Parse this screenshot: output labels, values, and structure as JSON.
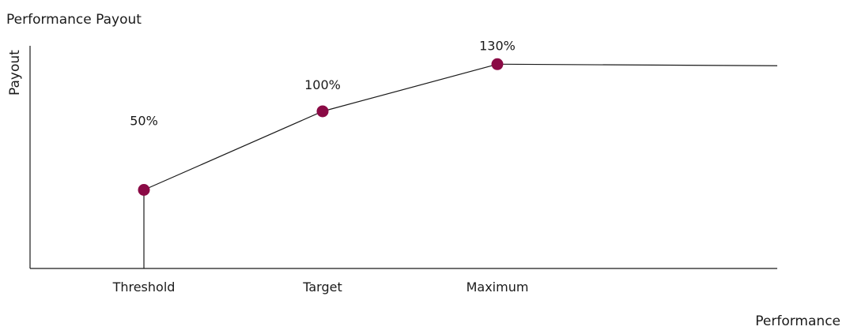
{
  "chart_data": {
    "type": "line",
    "title": "Performance Payout",
    "xlabel": "Performance",
    "ylabel": "Payout",
    "categories": [
      "Threshold",
      "Target",
      "Maximum"
    ],
    "series": [
      {
        "values": [
          50,
          100,
          130
        ],
        "data_labels": [
          "50%",
          "100%",
          "130%"
        ]
      }
    ],
    "ylim": [
      0,
      140
    ],
    "grid": false,
    "legend": "none",
    "extends_flat_after_last_point": true,
    "colors": {
      "marker": "#8a0a45",
      "line": "#1a1a1a",
      "axis": "#1a1a1a",
      "text": "#1a1a1a"
    }
  }
}
